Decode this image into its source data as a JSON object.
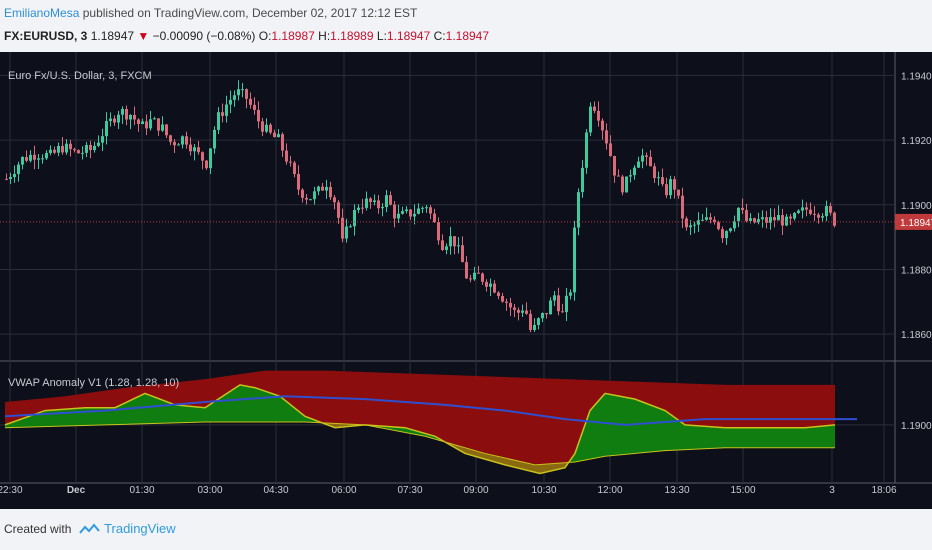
{
  "header": {
    "author": "EmilianoMesa",
    "published": "published on TradingView.com, December 02, 2017 12:12 EST",
    "symbol": "FX:EURUSD, 3",
    "last": "1.18947",
    "change": "−0.00090 (−0.08%)",
    "o_label": "O:",
    "o_value": "1.18987",
    "h_label": "H:",
    "h_value": "1.18989",
    "l_label": "L:",
    "l_value": "1.18947",
    "c_label": "C:",
    "c_value": "1.18947"
  },
  "footer": {
    "created_with": "Created with",
    "brand": "TradingView"
  },
  "colors": {
    "background": "#0d0f1a",
    "grid": "#2a2e3b",
    "up": "#3fc9a0",
    "down": "#d96b7a",
    "price_line": "#c0393b",
    "red_fill": "#8b0d0d",
    "green_fill": "#0f7d0f",
    "yellow": "#c9c21d",
    "vwap": "#2f4fd0"
  },
  "chart_data": [
    {
      "type": "candlestick",
      "title": "Euro Fx/U.S. Dollar, 3, FXCM",
      "y_ticks": [
        "1.19400",
        "1.19200",
        "1.19000",
        "1.18800",
        "1.18600"
      ],
      "ylim": [
        1.1852,
        1.1946
      ],
      "current_price": 1.18947,
      "current_price_label": "1.18947",
      "x_ticks": [
        "22:30",
        "Dec",
        "01:30",
        "03:00",
        "04:30",
        "06:00",
        "07:30",
        "09:00",
        "10:30",
        "12:00",
        "13:30",
        "15:00",
        "3",
        "18:06"
      ],
      "close_path": [
        [
          0,
          1.1908
        ],
        [
          15,
          1.1914
        ],
        [
          30,
          1.1916
        ],
        [
          45,
          1.1915
        ],
        [
          55,
          1.1918
        ],
        [
          70,
          1.1916
        ],
        [
          85,
          1.1917
        ],
        [
          100,
          1.1924
        ],
        [
          112,
          1.1929
        ],
        [
          124,
          1.1928
        ],
        [
          135,
          1.1924
        ],
        [
          145,
          1.1926
        ],
        [
          155,
          1.1924
        ],
        [
          165,
          1.1919
        ],
        [
          178,
          1.1921
        ],
        [
          190,
          1.1916
        ],
        [
          200,
          1.1913
        ],
        [
          210,
          1.1926
        ],
        [
          220,
          1.1931
        ],
        [
          230,
          1.1935
        ],
        [
          240,
          1.1933
        ],
        [
          252,
          1.1926
        ],
        [
          262,
          1.1922
        ],
        [
          272,
          1.192
        ],
        [
          282,
          1.1913
        ],
        [
          292,
          1.1905
        ],
        [
          302,
          1.1902
        ],
        [
          312,
          1.1904
        ],
        [
          320,
          1.1907
        ],
        [
          330,
          1.19
        ],
        [
          336,
          1.1888
        ],
        [
          344,
          1.1895
        ],
        [
          352,
          1.19
        ],
        [
          362,
          1.1901
        ],
        [
          370,
          1.1899
        ],
        [
          380,
          1.1902
        ],
        [
          390,
          1.1896
        ],
        [
          400,
          1.1897
        ],
        [
          410,
          1.1898
        ],
        [
          420,
          1.19
        ],
        [
          428,
          1.1894
        ],
        [
          436,
          1.1888
        ],
        [
          446,
          1.189
        ],
        [
          454,
          1.1884
        ],
        [
          462,
          1.1876
        ],
        [
          472,
          1.1878
        ],
        [
          482,
          1.1876
        ],
        [
          490,
          1.1874
        ],
        [
          500,
          1.187
        ],
        [
          510,
          1.1866
        ],
        [
          518,
          1.1869
        ],
        [
          525,
          1.186
        ],
        [
          532,
          1.1864
        ],
        [
          540,
          1.1867
        ],
        [
          548,
          1.1872
        ],
        [
          556,
          1.1866
        ],
        [
          564,
          1.1874
        ],
        [
          570,
          1.19
        ],
        [
          578,
          1.1917
        ],
        [
          584,
          1.1932
        ],
        [
          590,
          1.193
        ],
        [
          596,
          1.1924
        ],
        [
          602,
          1.1918
        ],
        [
          610,
          1.1908
        ],
        [
          618,
          1.1905
        ],
        [
          626,
          1.1912
        ],
        [
          634,
          1.1916
        ],
        [
          642,
          1.1912
        ],
        [
          650,
          1.1909
        ],
        [
          658,
          1.1903
        ],
        [
          666,
          1.1908
        ],
        [
          672,
          1.1901
        ],
        [
          680,
          1.1892
        ],
        [
          690,
          1.1894
        ],
        [
          700,
          1.1895
        ],
        [
          708,
          1.1896
        ],
        [
          716,
          1.1891
        ],
        [
          724,
          1.1894
        ],
        [
          732,
          1.1899
        ],
        [
          742,
          1.1894
        ],
        [
          752,
          1.1895
        ],
        [
          762,
          1.1895
        ],
        [
          772,
          1.1896
        ],
        [
          782,
          1.1894
        ],
        [
          792,
          1.1897
        ],
        [
          802,
          1.1899
        ],
        [
          812,
          1.1898
        ],
        [
          820,
          1.1898
        ],
        [
          828,
          1.1895
        ]
      ]
    },
    {
      "type": "area",
      "title": "VWAP Anomaly V1 (1.28, 1.28, 10)",
      "y_ticks": [
        "1.1900"
      ],
      "ylim": [
        1.188,
        1.1922
      ],
      "series": [
        {
          "role": "upper_band",
          "points": [
            [
              0,
              1.1908
            ],
            [
              60,
              1.191
            ],
            [
              120,
              1.1913
            ],
            [
              200,
              1.1916
            ],
            [
              260,
              1.1919
            ],
            [
              320,
              1.1919
            ],
            [
              400,
              1.1918
            ],
            [
              480,
              1.1917
            ],
            [
              560,
              1.1916
            ],
            [
              640,
              1.1915
            ],
            [
              720,
              1.1914
            ],
            [
              830,
              1.1914
            ]
          ]
        },
        {
          "role": "lower_band",
          "points": [
            [
              0,
              1.1899
            ],
            [
              100,
              1.19
            ],
            [
              200,
              1.1901
            ],
            [
              300,
              1.1901
            ],
            [
              360,
              1.19
            ],
            [
              420,
              1.1896
            ],
            [
              480,
              1.189
            ],
            [
              530,
              1.1886
            ],
            [
              570,
              1.1887
            ],
            [
              600,
              1.1889
            ],
            [
              660,
              1.1891
            ],
            [
              720,
              1.1892
            ],
            [
              830,
              1.1892
            ]
          ]
        },
        {
          "role": "vwap",
          "points": [
            [
              0,
              1.1903
            ],
            [
              100,
              1.1905
            ],
            [
              200,
              1.1908
            ],
            [
              280,
              1.191
            ],
            [
              360,
              1.1909
            ],
            [
              440,
              1.1907
            ],
            [
              500,
              1.1905
            ],
            [
              560,
              1.1902
            ],
            [
              620,
              1.19
            ],
            [
              700,
              1.1902
            ],
            [
              780,
              1.1902
            ],
            [
              852,
              1.1902
            ]
          ]
        },
        {
          "role": "price",
          "points": [
            [
              0,
              1.19
            ],
            [
              40,
              1.1905
            ],
            [
              80,
              1.1906
            ],
            [
              110,
              1.1906
            ],
            [
              140,
              1.1911
            ],
            [
              170,
              1.1907
            ],
            [
              200,
              1.1906
            ],
            [
              235,
              1.1914
            ],
            [
              250,
              1.1913
            ],
            [
              275,
              1.191
            ],
            [
              300,
              1.1903
            ],
            [
              330,
              1.1899
            ],
            [
              360,
              1.19
            ],
            [
              400,
              1.1899
            ],
            [
              430,
              1.1896
            ],
            [
              460,
              1.189
            ],
            [
              500,
              1.1886
            ],
            [
              535,
              1.1883
            ],
            [
              560,
              1.1885
            ],
            [
              570,
              1.189
            ],
            [
              585,
              1.1905
            ],
            [
              600,
              1.1911
            ],
            [
              630,
              1.1909
            ],
            [
              660,
              1.1905
            ],
            [
              680,
              1.19
            ],
            [
              720,
              1.1899
            ],
            [
              760,
              1.1899
            ],
            [
              800,
              1.1899
            ],
            [
              830,
              1.19
            ]
          ]
        }
      ]
    }
  ]
}
